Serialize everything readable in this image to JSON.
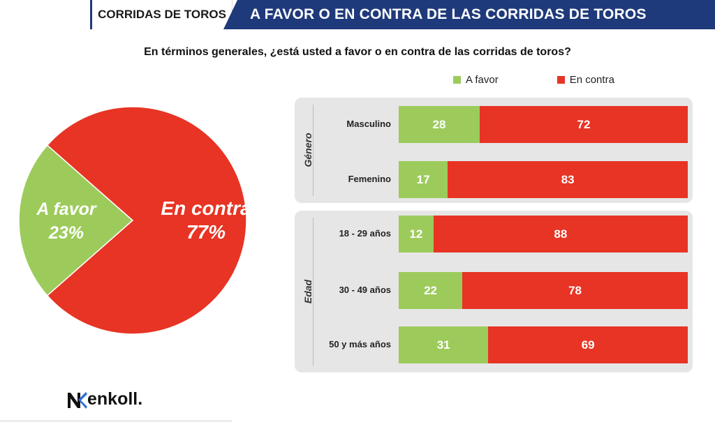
{
  "header": {
    "section": "CORRIDAS DE TOROS",
    "title": "A FAVOR O EN CONTRA DE LAS CORRIDAS DE TOROS"
  },
  "question": "En términos generales, ¿está usted a favor o en contra de las corridas de toros?",
  "brand": "enkoll.",
  "colors": {
    "favor": "#9ccb5b",
    "contra": "#e73424",
    "header_blue": "#1f3a7a"
  },
  "chart_data": [
    {
      "type": "pie",
      "slices": [
        {
          "label": "A favor",
          "value": 23,
          "text": "23%",
          "color": "#9ccb5b"
        },
        {
          "label": "En contra",
          "value": 77,
          "text": "77%",
          "color": "#e73424"
        }
      ]
    },
    {
      "type": "bar",
      "stacked": true,
      "orientation": "horizontal",
      "legend": [
        "A favor",
        "En contra"
      ],
      "legend_position": "top",
      "groups": [
        {
          "name": "Género",
          "categories": [
            "Masculino",
            "Femenino"
          ],
          "series": [
            {
              "name": "A favor",
              "values": [
                28,
                17
              ]
            },
            {
              "name": "En contra",
              "values": [
                72,
                83
              ]
            }
          ]
        },
        {
          "name": "Edad",
          "categories": [
            "18 - 29 años",
            "30 - 49 años",
            "50 y más años"
          ],
          "series": [
            {
              "name": "A favor",
              "values": [
                12,
                22,
                31
              ]
            },
            {
              "name": "En contra",
              "values": [
                88,
                78,
                69
              ]
            }
          ]
        }
      ]
    }
  ]
}
